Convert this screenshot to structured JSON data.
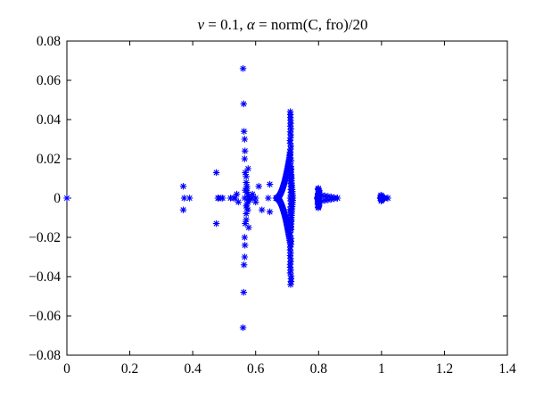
{
  "chart_data": {
    "type": "scatter",
    "title": {
      "nu_symbol": "ν",
      "nu_value": " = 0.1, ",
      "alpha_symbol": "α",
      "alpha_value": " = norm(C, fro)/20"
    },
    "xlabel": "",
    "ylabel": "",
    "xlim": [
      0,
      1.4
    ],
    "ylim": [
      -0.08,
      0.08
    ],
    "x_ticks": [
      0,
      0.2,
      0.4,
      0.6,
      0.8,
      1.0,
      1.2,
      1.4
    ],
    "x_tick_labels": [
      "0",
      "0.2",
      "0.4",
      "0.6",
      "0.8",
      "1",
      "1.2",
      "1.4"
    ],
    "y_ticks": [
      0.08,
      0.06,
      0.04,
      0.02,
      0,
      -0.02,
      -0.04,
      -0.06,
      -0.08
    ],
    "y_tick_labels": [
      "0.08",
      "0.06",
      "0.04",
      "0.02",
      "0",
      "−0.02",
      "−0.04",
      "−0.06",
      "−0.08"
    ],
    "grid": false,
    "marker": "asterisk",
    "marker_color": "#0000ff",
    "series": [
      {
        "x": [
          0.0,
          0.37,
          0.37,
          0.373,
          0.39,
          0.475,
          0.475,
          0.48,
          0.482,
          0.49,
          0.495,
          0.53,
          0.535,
          0.54,
          0.52,
          0.545,
          0.56,
          0.56,
          0.562,
          0.562,
          0.563,
          0.563,
          0.565,
          0.565,
          0.565,
          0.565,
          0.566,
          0.566,
          0.567,
          0.567,
          0.57,
          0.57,
          0.57,
          0.57,
          0.572,
          0.572,
          0.573,
          0.573,
          0.575,
          0.575,
          0.575,
          0.576,
          0.578,
          0.578,
          0.58,
          0.58,
          0.565,
          0.567,
          0.57,
          0.572,
          0.575,
          0.59,
          0.59,
          0.6,
          0.6,
          0.61,
          0.62,
          0.64,
          0.645,
          0.645
        ],
        "y": [
          0.0,
          0.006,
          -0.006,
          0.0,
          0.0,
          0.013,
          -0.013,
          0.0,
          0.0,
          0.0,
          0.0,
          0.0,
          0.0,
          0.002,
          0.0,
          -0.002,
          0.066,
          -0.066,
          0.048,
          -0.048,
          0.034,
          -0.034,
          0.03,
          -0.03,
          0.02,
          -0.02,
          0.024,
          -0.024,
          0.013,
          -0.013,
          0.011,
          -0.011,
          0.008,
          -0.008,
          0.005,
          -0.005,
          0.003,
          -0.003,
          0.002,
          -0.002,
          0.0,
          0.015,
          -0.015,
          0.001,
          -0.001,
          0.0,
          0.0,
          0.004,
          -0.004,
          0.006,
          -0.006,
          0.0,
          0.002,
          -0.002,
          0.0,
          0.006,
          -0.006,
          0.0,
          0.007,
          -0.007
        ]
      }
    ],
    "clusters": [
      {
        "type": "spindle",
        "x_center": 0.711,
        "y_half_height": 0.044,
        "x_left": 0.645,
        "x_right": 0.718,
        "points": 60
      },
      {
        "type": "spindle",
        "x_center": 0.8,
        "y_half_height": 0.005,
        "x_left": 0.795,
        "x_right": 0.86,
        "points": 28
      },
      {
        "type": "spindle",
        "x_center": 1.0,
        "y_half_height": 0.0015,
        "x_left": 0.995,
        "x_right": 1.02,
        "points": 10
      }
    ]
  }
}
